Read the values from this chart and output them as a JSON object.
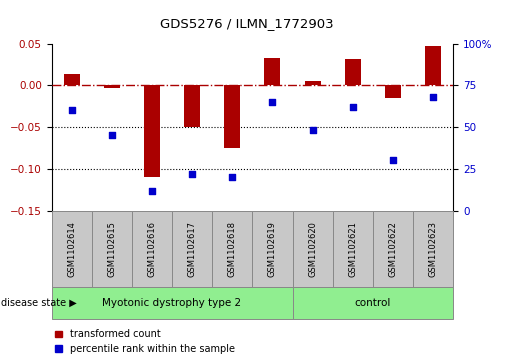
{
  "title": "GDS5276 / ILMN_1772903",
  "samples": [
    "GSM1102614",
    "GSM1102615",
    "GSM1102616",
    "GSM1102617",
    "GSM1102618",
    "GSM1102619",
    "GSM1102620",
    "GSM1102621",
    "GSM1102622",
    "GSM1102623"
  ],
  "transformed_count": [
    0.013,
    -0.003,
    -0.11,
    -0.05,
    -0.075,
    0.033,
    0.005,
    0.032,
    -0.015,
    0.047
  ],
  "percentile_rank": [
    60,
    45,
    12,
    22,
    20,
    65,
    48,
    62,
    30,
    68
  ],
  "disease_groups": [
    {
      "label": "Myotonic dystrophy type 2",
      "start": 0,
      "end": 5,
      "color": "#90EE90"
    },
    {
      "label": "control",
      "start": 6,
      "end": 9,
      "color": "#90EE90"
    }
  ],
  "red_color": "#AA0000",
  "blue_color": "#0000CC",
  "bar_width": 0.4,
  "ylim_left": [
    -0.15,
    0.05
  ],
  "ylim_right": [
    0,
    100
  ],
  "yticks_left": [
    -0.15,
    -0.1,
    -0.05,
    0,
    0.05
  ],
  "yticks_right": [
    0,
    25,
    50,
    75,
    100
  ],
  "dotted_lines": [
    -0.05,
    -0.1
  ],
  "legend_items": [
    "transformed count",
    "percentile rank within the sample"
  ],
  "disease_state_label": "disease state",
  "sample_box_color": "#C8C8C8",
  "green_color": "#90EE90"
}
